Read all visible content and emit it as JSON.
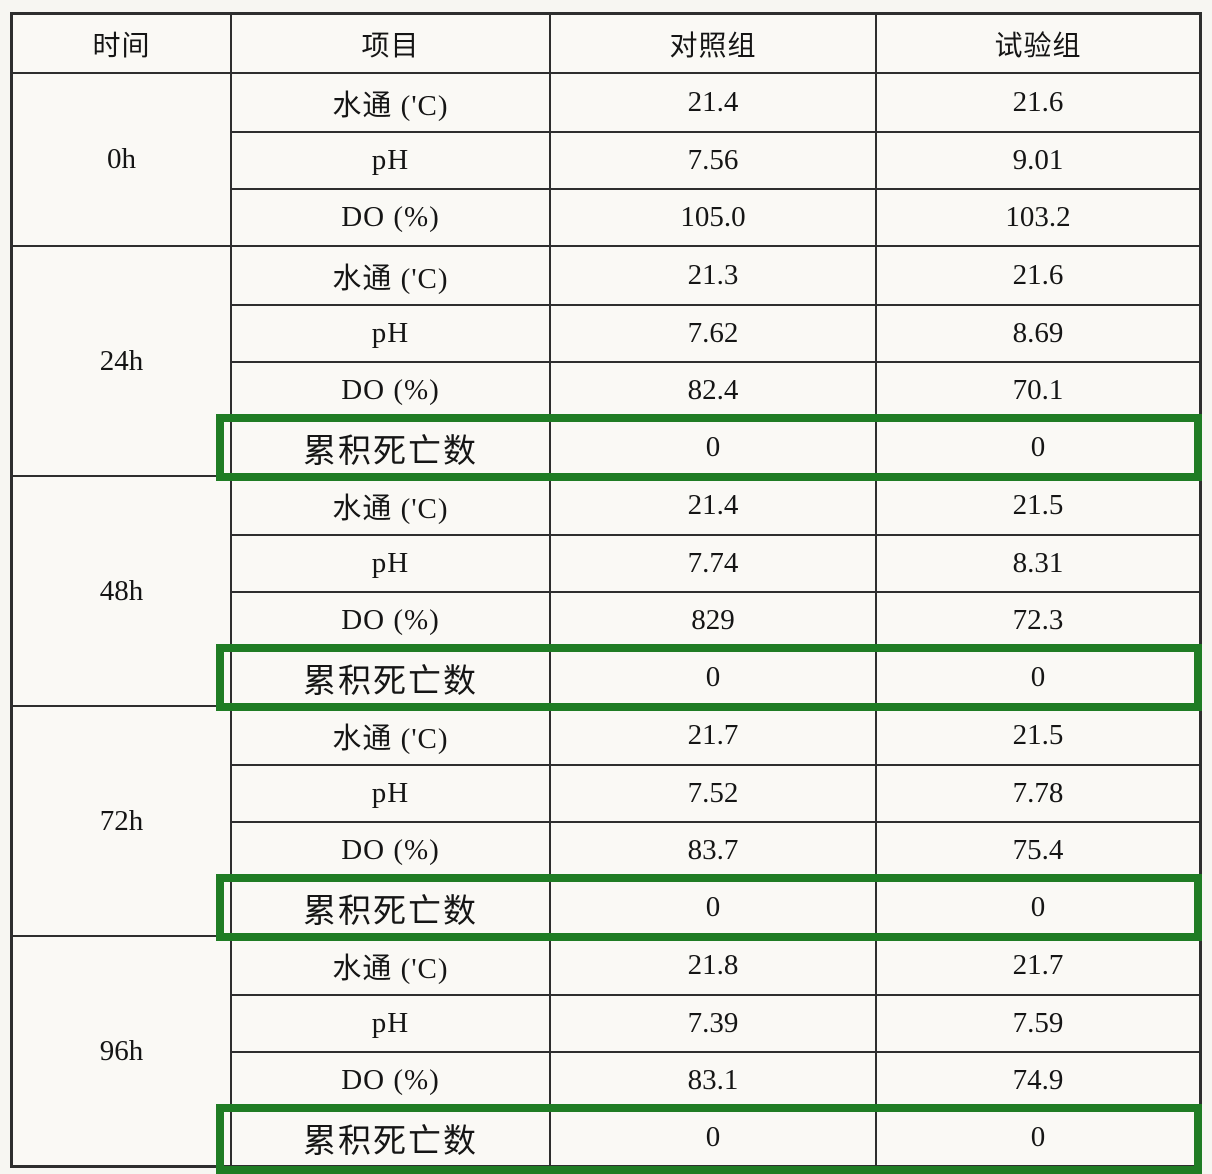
{
  "colors": {
    "highlight": "#1f7c24"
  },
  "header": {
    "time": "时间",
    "item": "项目",
    "control": "对照组",
    "test": "试验组"
  },
  "blocks": [
    {
      "time": "0h",
      "rows": [
        {
          "item": "水通 ('C)",
          "control": "21.4",
          "test": "21.6"
        },
        {
          "item": "pH",
          "control": "7.56",
          "test": "9.01"
        },
        {
          "item": "DO (%)",
          "control": "105.0",
          "test": "103.2"
        }
      ]
    },
    {
      "time": "24h",
      "rows": [
        {
          "item": "水通 ('C)",
          "control": "21.3",
          "test": "21.6"
        },
        {
          "item": "pH",
          "control": "7.62",
          "test": "8.69"
        },
        {
          "item": "DO (%)",
          "control": "82.4",
          "test": "70.1"
        },
        {
          "item": "累积死亡数",
          "control": "0",
          "test": "0",
          "highlighted": true
        }
      ]
    },
    {
      "time": "48h",
      "rows": [
        {
          "item": "水通 ('C)",
          "control": "21.4",
          "test": "21.5"
        },
        {
          "item": "pH",
          "control": "7.74",
          "test": "8.31"
        },
        {
          "item": "DO (%)",
          "control": "829",
          "test": "72.3"
        },
        {
          "item": "累积死亡数",
          "control": "0",
          "test": "0",
          "highlighted": true
        }
      ]
    },
    {
      "time": "72h",
      "rows": [
        {
          "item": "水通 ('C)",
          "control": "21.7",
          "test": "21.5"
        },
        {
          "item": "pH",
          "control": "7.52",
          "test": "7.78"
        },
        {
          "item": "DO (%)",
          "control": "83.7",
          "test": "75.4"
        },
        {
          "item": "累积死亡数",
          "control": "0",
          "test": "0",
          "highlighted": true
        }
      ]
    },
    {
      "time": "96h",
      "rows": [
        {
          "item": "水通 ('C)",
          "control": "21.8",
          "test": "21.7"
        },
        {
          "item": "pH",
          "control": "7.39",
          "test": "7.59"
        },
        {
          "item": "DO (%)",
          "control": "83.1",
          "test": "74.9"
        },
        {
          "item": "累积死亡数",
          "control": "0",
          "test": "0",
          "highlighted": true
        }
      ]
    }
  ]
}
